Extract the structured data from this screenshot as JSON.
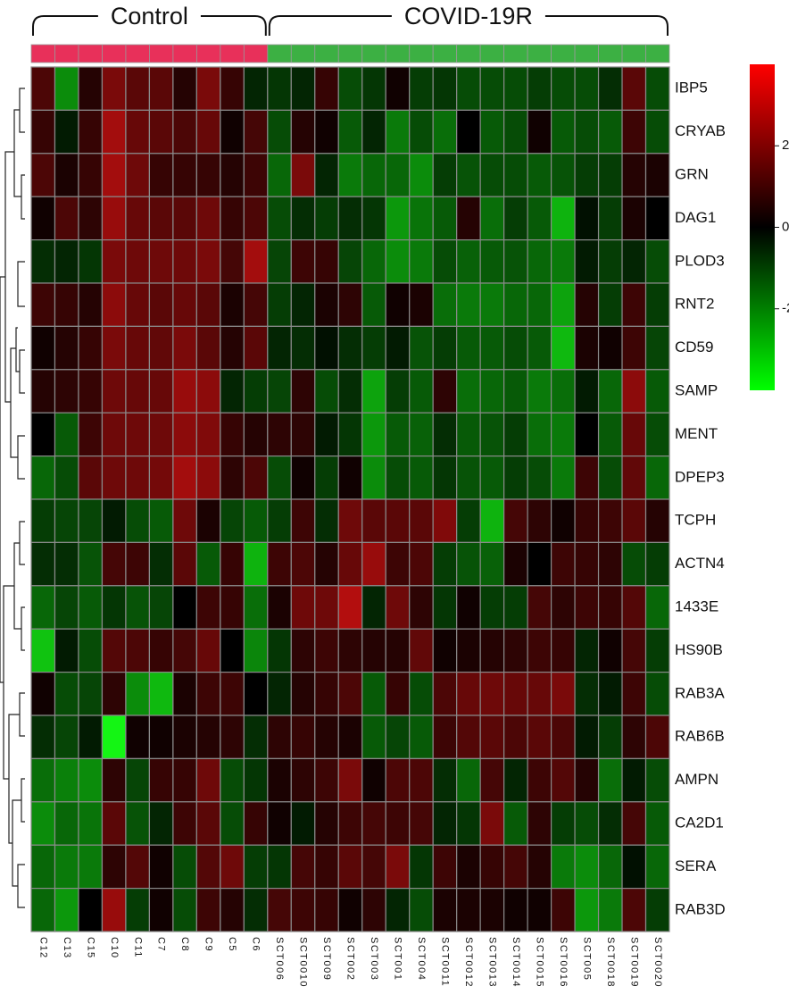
{
  "chart_data": {
    "type": "heatmap",
    "groups": [
      {
        "name": "Control",
        "color": "#e8305a",
        "size": 10
      },
      {
        "name": "COVID-19R",
        "color": "#3cb043",
        "size": 17
      }
    ],
    "columns": [
      "C12",
      "C13",
      "C15",
      "C10",
      "C11",
      "C7",
      "C8",
      "C9",
      "C5",
      "C6",
      "SCT006",
      "SCT0010",
      "SCT009",
      "SCT002",
      "SCT003",
      "SCT001",
      "SCT004",
      "SCT0011",
      "SCT0012",
      "SCT0013",
      "SCT0014",
      "SCT0015",
      "SCT0016",
      "SCT005",
      "SCT0018",
      "SCT0019",
      "SCT0020"
    ],
    "rows": [
      "IBP5",
      "CRYAB",
      "GRN",
      "DAG1",
      "PLOD3",
      "RNT2",
      "CD59",
      "SAMP",
      "MENT",
      "DPEP3",
      "TCPH",
      "ACTN4",
      "1433E",
      "HS90B",
      "RAB3A",
      "RAB6B",
      "AMPN",
      "CA2D1",
      "SERA",
      "RAB3D"
    ],
    "values": [
      [
        0.8,
        -1.8,
        0.3,
        1.5,
        1.0,
        1.0,
        0.3,
        1.5,
        0.5,
        -0.3,
        -0.5,
        -0.3,
        0.5,
        -0.8,
        -0.5,
        0.1,
        -0.6,
        -0.5,
        -0.8,
        -0.8,
        -0.8,
        -0.6,
        -0.8,
        -0.8,
        -0.4,
        1.0,
        -0.8
      ],
      [
        0.5,
        -0.2,
        0.5,
        2.2,
        1.2,
        1.0,
        0.8,
        1.2,
        0.1,
        0.7,
        -0.8,
        0.3,
        0.1,
        -1.0,
        -0.3,
        -1.5,
        -0.8,
        -1.3,
        0,
        -1.0,
        -0.8,
        0.1,
        -1.0,
        -0.8,
        -1.0,
        0.6,
        -0.8
      ],
      [
        0.8,
        0.2,
        0.5,
        2.2,
        1.3,
        0.5,
        0.5,
        0.5,
        0.3,
        0.6,
        -1.2,
        1.5,
        -0.3,
        -1.5,
        -1.2,
        -1.2,
        -1.8,
        -0.6,
        -0.9,
        -0.8,
        -0.8,
        -1.0,
        -0.9,
        -0.6,
        -0.6,
        0.3,
        0.2
      ],
      [
        0.1,
        0.8,
        0.4,
        2.0,
        1.2,
        1.0,
        1.0,
        1.3,
        0.5,
        0.8,
        -0.8,
        -0.4,
        -0.6,
        -0.4,
        -0.5,
        -2.0,
        -1.4,
        -1.0,
        0.3,
        -1.3,
        -0.6,
        -1.0,
        -2.5,
        -0.1,
        -0.6,
        0.2,
        0
      ],
      [
        -0.4,
        -0.3,
        -0.5,
        1.5,
        1.3,
        1.3,
        1.3,
        1.5,
        0.7,
        2.2,
        -0.7,
        0.6,
        0.5,
        -0.7,
        -1.2,
        -1.8,
        -1.5,
        -0.8,
        -1.1,
        -1.0,
        -0.9,
        -1.2,
        -1.5,
        -0.2,
        -0.6,
        -0.3,
        -0.8
      ],
      [
        0.6,
        0.5,
        0.3,
        1.8,
        1.2,
        1.0,
        1.2,
        1.0,
        0.2,
        0.7,
        -0.6,
        -0.3,
        0.2,
        0.4,
        -1.0,
        0.1,
        0.2,
        -1.3,
        -1.5,
        -1.5,
        -1.2,
        -1.2,
        -2.2,
        0.3,
        -0.6,
        0.6,
        -0.6
      ],
      [
        0.1,
        0.3,
        0.5,
        1.5,
        1.2,
        1.1,
        1.5,
        1.0,
        0.3,
        1.0,
        -0.3,
        -0.4,
        -0.1,
        -0.4,
        -0.6,
        -0.2,
        -0.9,
        -0.6,
        -1.0,
        -1.0,
        -0.8,
        -1.0,
        -2.6,
        0.2,
        0.1,
        0.6,
        -0.7
      ],
      [
        0.3,
        0.4,
        0.5,
        1.3,
        1.2,
        1.2,
        2.0,
        1.8,
        -0.3,
        -0.6,
        -0.7,
        0.4,
        -0.8,
        -0.4,
        -2.2,
        -0.6,
        -1.0,
        0.4,
        -1.3,
        -1.2,
        -1.0,
        -1.5,
        -1.3,
        -0.2,
        -1.2,
        1.8,
        -1.0
      ],
      [
        0,
        -1.0,
        0.6,
        1.3,
        1.3,
        1.3,
        1.8,
        1.6,
        0.5,
        0.3,
        0.4,
        0.4,
        -0.2,
        -0.5,
        -2.0,
        -1.0,
        -1.1,
        -0.4,
        -1.0,
        -0.9,
        -0.6,
        -1.3,
        -1.5,
        0,
        -1.0,
        1.2,
        -0.8
      ],
      [
        -1.2,
        -0.8,
        1.0,
        1.3,
        1.3,
        1.4,
        2.2,
        1.8,
        0.4,
        0.8,
        -0.8,
        0.1,
        -0.6,
        0.1,
        -1.8,
        -0.8,
        -1.0,
        -0.5,
        -0.9,
        -1.0,
        -0.6,
        -0.8,
        -1.5,
        0.6,
        -0.8,
        1.1,
        -1.2
      ],
      [
        -0.6,
        -0.7,
        -0.7,
        -0.2,
        -0.8,
        -1.0,
        1.3,
        0.2,
        -0.7,
        -1.0,
        -0.6,
        0.6,
        -0.4,
        1.3,
        1.0,
        1.0,
        1.0,
        1.6,
        -0.6,
        -2.5,
        0.7,
        0.4,
        0.1,
        0.5,
        0.6,
        1.0,
        0.3
      ],
      [
        -0.4,
        -0.4,
        -0.9,
        0.7,
        0.6,
        -0.4,
        1.0,
        -1.0,
        0.5,
        -2.5,
        0.6,
        0.8,
        0.3,
        1.2,
        2.0,
        0.6,
        0.8,
        -0.6,
        -0.9,
        -1.1,
        0.2,
        0,
        0.6,
        0.5,
        0.4,
        -0.8,
        -0.6
      ],
      [
        -1.2,
        -0.7,
        -1.0,
        -0.5,
        -0.9,
        -0.7,
        0,
        0.6,
        0.5,
        -1.3,
        0.2,
        1.3,
        1.3,
        2.5,
        -0.3,
        1.3,
        0.4,
        -0.5,
        0.1,
        -0.6,
        -0.6,
        0.7,
        0.4,
        0.6,
        0.5,
        0.9,
        -1.2
      ],
      [
        -2.8,
        -0.2,
        -0.8,
        0.9,
        0.8,
        0.5,
        0.7,
        1.2,
        0,
        -1.7,
        -0.5,
        0.4,
        0.6,
        0.4,
        0.3,
        0.3,
        1.1,
        0.1,
        0.2,
        0.3,
        0.4,
        0.6,
        0.5,
        -0.3,
        0.1,
        0.7,
        -0.6
      ],
      [
        0.1,
        -0.8,
        -0.7,
        0.4,
        -1.8,
        -2.6,
        0.2,
        0.6,
        0.6,
        0,
        -0.3,
        0.3,
        0.5,
        0.8,
        -1.0,
        0.5,
        -0.8,
        0.8,
        1.2,
        1.3,
        1.2,
        1.2,
        1.5,
        -0.4,
        -0.2,
        0.6,
        -0.8
      ],
      [
        -0.4,
        -0.7,
        -0.2,
        -3.8,
        0.1,
        0.1,
        0.2,
        0.3,
        0.4,
        -0.4,
        0.4,
        0.5,
        0.3,
        0.2,
        -1.0,
        -0.7,
        -1.0,
        0.6,
        0.9,
        1.0,
        0.8,
        1.0,
        0.8,
        -0.2,
        -0.6,
        0.4,
        0.8
      ],
      [
        -1.3,
        -1.6,
        -1.8,
        0.4,
        -0.7,
        0.5,
        0.5,
        1.3,
        -0.8,
        -0.5,
        0.2,
        0.4,
        0.6,
        1.5,
        0.1,
        0.8,
        0.8,
        -0.4,
        -1.2,
        0.7,
        -0.3,
        0.6,
        0.9,
        0.3,
        -1.3,
        -0.2,
        -0.8
      ],
      [
        -1.8,
        -1.2,
        -1.4,
        1.0,
        -0.9,
        -0.3,
        0.6,
        1.0,
        -0.8,
        0.5,
        0.1,
        -0.2,
        0.3,
        0.6,
        0.7,
        0.6,
        0.7,
        -0.3,
        -0.5,
        1.5,
        -1.0,
        0.4,
        -0.6,
        -0.8,
        -0.4,
        0.7,
        -1.0
      ],
      [
        -1.2,
        -1.5,
        -1.5,
        0.4,
        0.9,
        0.1,
        -0.8,
        0.9,
        1.3,
        -0.6,
        -0.5,
        0.7,
        0.5,
        1.0,
        0.7,
        1.5,
        -0.5,
        0.6,
        0.2,
        0.5,
        0.7,
        0.3,
        -1.5,
        -1.8,
        -1.2,
        -0.1,
        -1.2
      ],
      [
        -1.2,
        -2.0,
        0,
        2.0,
        -0.6,
        0.1,
        -0.8,
        0.6,
        0.3,
        -0.4,
        0.7,
        0.6,
        0.5,
        0.1,
        0.4,
        -0.3,
        -0.8,
        0.2,
        0.2,
        0.2,
        0.1,
        0.1,
        0.6,
        -2.0,
        -1.5,
        0.8,
        -0.6
      ]
    ],
    "colorbar": {
      "lim": [
        -4,
        4
      ],
      "ticks": [
        -2,
        0,
        2
      ]
    }
  }
}
